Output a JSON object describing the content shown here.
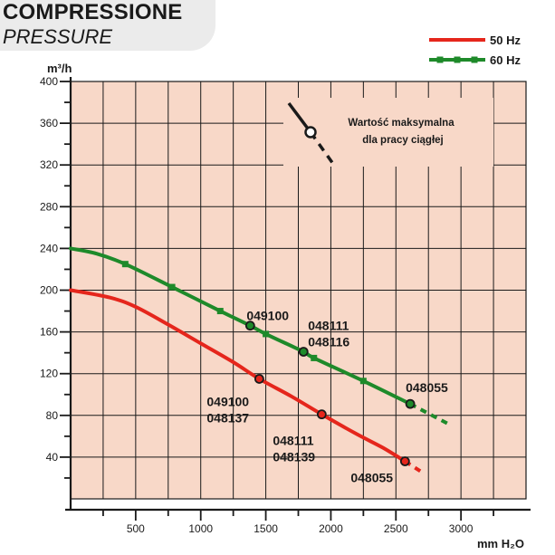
{
  "header": {
    "title": "COMPRESSIONE",
    "subtitle": "PRESSURE"
  },
  "colors": {
    "plot_bg": "#f8d8c8",
    "grid": "#1a1a1a",
    "series_50hz": "#e5261c",
    "series_60hz": "#1e8a2a"
  },
  "chart_data": {
    "type": "line",
    "title": "COMPRESSIONE / PRESSURE",
    "xlabel": "mm H₂O",
    "ylabel": "m³/h",
    "xlim": [
      0,
      3500
    ],
    "ylim": [
      0,
      400
    ],
    "xticks": [
      500,
      1000,
      1500,
      2000,
      2500,
      3000
    ],
    "yticks": [
      40,
      80,
      120,
      160,
      200,
      240,
      280,
      320,
      360,
      400
    ],
    "grid": true,
    "legend": "top-right",
    "series": [
      {
        "name": "50 Hz",
        "color": "#e5261c",
        "x": [
          0,
          300,
          500,
          750,
          1000,
          1250,
          1450,
          1700,
          1930,
          2200,
          2400,
          2570
        ],
        "y": [
          200,
          193,
          184,
          167,
          149,
          131,
          115,
          98,
          81,
          62,
          49,
          36
        ],
        "extension_x": [
          2570,
          2720
        ],
        "extension_y": [
          36,
          24
        ],
        "markers_x": [],
        "markers_y": []
      },
      {
        "name": "60 Hz",
        "color": "#1e8a2a",
        "x": [
          0,
          200,
          420,
          780,
          1150,
          1380,
          1500,
          1790,
          1870,
          2250,
          2610
        ],
        "y": [
          240,
          235,
          225,
          203,
          180,
          166,
          158,
          141,
          135,
          113,
          91
        ],
        "extension_x": [
          2610,
          2900
        ],
        "extension_y": [
          91,
          72
        ],
        "markers_x": [
          420,
          780,
          1150,
          1500,
          1870,
          2250
        ],
        "markers_y": [
          225,
          203,
          180,
          158,
          135,
          113
        ]
      }
    ],
    "points": [
      {
        "series": "50 Hz",
        "x": 1450,
        "y": 115,
        "labels": [
          "049100",
          "048137"
        ]
      },
      {
        "series": "50 Hz",
        "x": 1930,
        "y": 81,
        "labels": [
          "048111",
          "048139"
        ]
      },
      {
        "series": "50 Hz",
        "x": 2570,
        "y": 36,
        "labels": [
          "048055"
        ]
      },
      {
        "series": "60 Hz",
        "x": 1380,
        "y": 166,
        "labels": [
          "049100"
        ]
      },
      {
        "series": "60 Hz",
        "x": 1790,
        "y": 141,
        "labels": [
          "048111",
          "048116"
        ]
      },
      {
        "series": "60 Hz",
        "x": 2610,
        "y": 91,
        "labels": [
          "048055"
        ]
      }
    ],
    "annotation": {
      "line1": "Wartość maksymalna",
      "line2": "dla pracy ciągłej"
    }
  }
}
